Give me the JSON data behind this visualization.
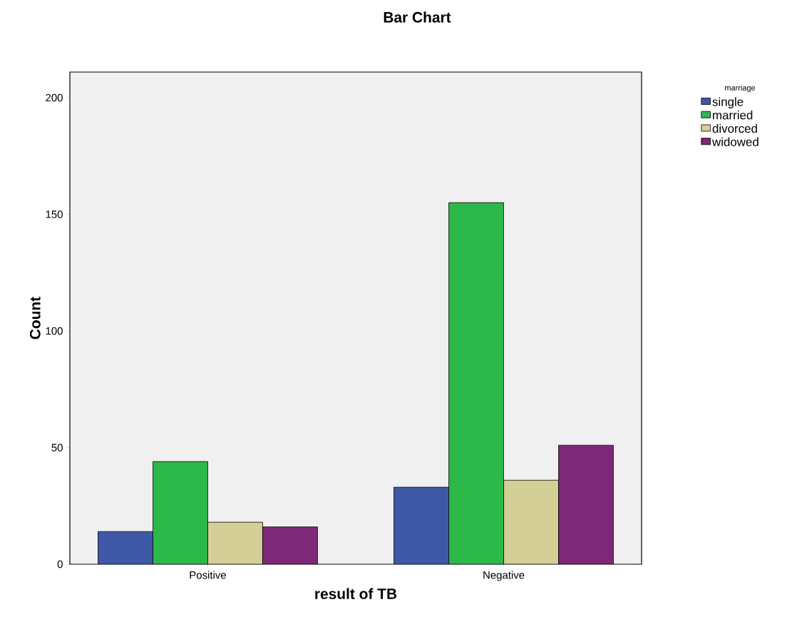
{
  "chart_data": {
    "type": "bar",
    "title": "Bar Chart",
    "xlabel": "result of TB",
    "ylabel": "Count",
    "legend_title": "marriage",
    "categories": [
      "Positive",
      "Negative"
    ],
    "series": [
      {
        "name": "single",
        "color": "#3f57a7",
        "values": [
          14,
          33
        ]
      },
      {
        "name": "married",
        "color": "#2db84a",
        "values": [
          44,
          155
        ]
      },
      {
        "name": "divorced",
        "color": "#d4cf97",
        "values": [
          18,
          36
        ]
      },
      {
        "name": "widowed",
        "color": "#7d2878",
        "values": [
          16,
          51
        ]
      }
    ],
    "ylim": [
      0,
      211
    ],
    "yticks": [
      0,
      50,
      100,
      150,
      200
    ],
    "grid": false,
    "legend": "top right"
  }
}
